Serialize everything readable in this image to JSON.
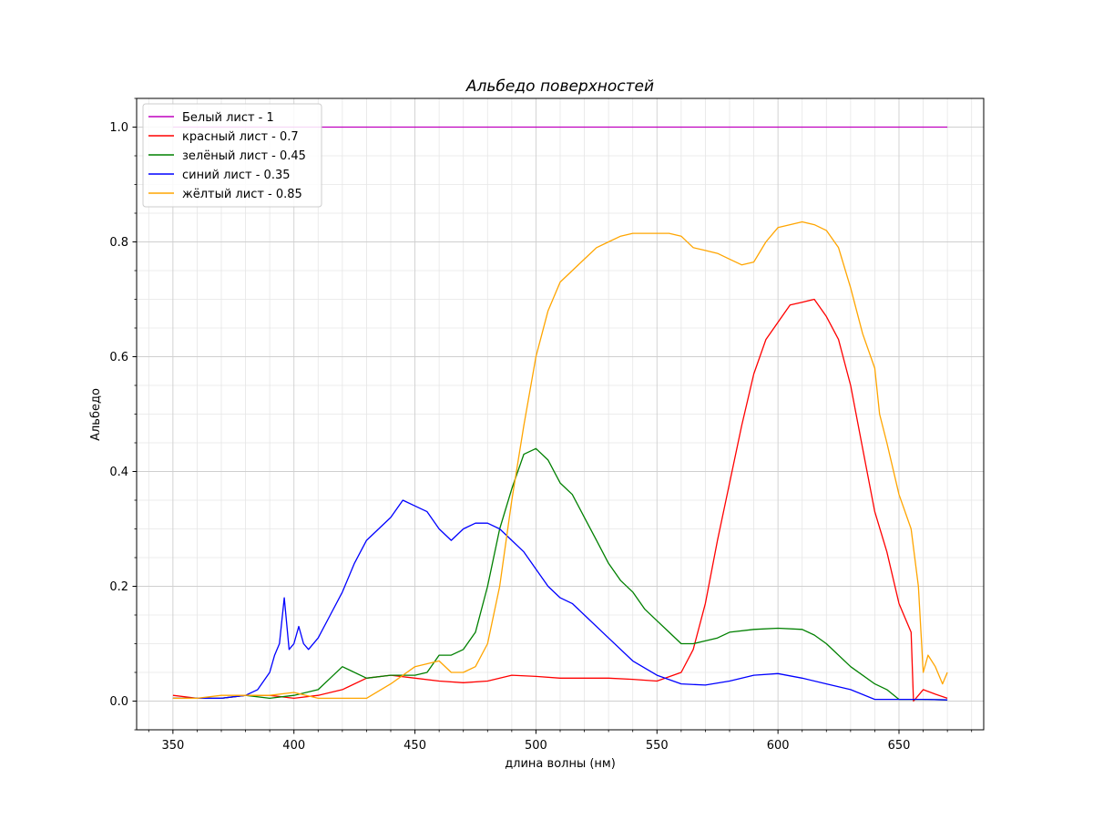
{
  "chart_data": {
    "type": "line",
    "title": "Альбедо поверхностей",
    "xlabel": "длина волны (нм)",
    "ylabel": "Альбедо",
    "xlim": [
      335,
      685
    ],
    "ylim": [
      -0.05,
      1.05
    ],
    "x_ticks": [
      350,
      400,
      450,
      500,
      550,
      600,
      650
    ],
    "y_ticks": [
      0.0,
      0.2,
      0.4,
      0.6,
      0.8,
      1.0
    ],
    "x_tick_labels": [
      "350",
      "400",
      "450",
      "500",
      "550",
      "600",
      "650"
    ],
    "y_tick_labels": [
      "0.0",
      "0.2",
      "0.4",
      "0.6",
      "0.8",
      "1.0"
    ],
    "grid": "major and minor",
    "legend_position": "upper-left",
    "series": [
      {
        "name": "Белый лист - 1",
        "color": "#bf00bf",
        "x": [
          350,
          670
        ],
        "y": [
          1.0,
          1.0
        ]
      },
      {
        "name": "красный лист - 0.7",
        "color": "#ff0000",
        "x": [
          350,
          360,
          370,
          380,
          390,
          400,
          410,
          420,
          430,
          440,
          450,
          460,
          470,
          480,
          490,
          500,
          510,
          520,
          530,
          540,
          550,
          560,
          565,
          570,
          575,
          580,
          585,
          590,
          595,
          600,
          605,
          610,
          615,
          620,
          625,
          630,
          635,
          640,
          645,
          650,
          652,
          655,
          656,
          657,
          660,
          665,
          670
        ],
        "y": [
          0.01,
          0.005,
          0.005,
          0.01,
          0.01,
          0.005,
          0.01,
          0.02,
          0.04,
          0.045,
          0.04,
          0.035,
          0.032,
          0.035,
          0.045,
          0.043,
          0.04,
          0.04,
          0.04,
          0.038,
          0.035,
          0.05,
          0.09,
          0.17,
          0.28,
          0.38,
          0.48,
          0.57,
          0.63,
          0.66,
          0.69,
          0.695,
          0.7,
          0.67,
          0.63,
          0.55,
          0.44,
          0.33,
          0.26,
          0.17,
          0.15,
          0.12,
          0.0,
          0.005,
          0.02,
          0.012,
          0.005
        ]
      },
      {
        "name": "зелёный лист - 0.45",
        "color": "#008000",
        "x": [
          350,
          360,
          370,
          380,
          390,
          400,
          410,
          415,
          420,
          430,
          440,
          450,
          455,
          460,
          465,
          470,
          475,
          480,
          485,
          490,
          495,
          500,
          505,
          510,
          515,
          520,
          525,
          530,
          535,
          540,
          545,
          550,
          555,
          560,
          565,
          570,
          575,
          580,
          590,
          600,
          610,
          615,
          620,
          630,
          640,
          645,
          650,
          660,
          670
        ],
        "y": [
          0.005,
          0.005,
          0.005,
          0.01,
          0.005,
          0.01,
          0.02,
          0.04,
          0.06,
          0.04,
          0.045,
          0.045,
          0.05,
          0.08,
          0.08,
          0.09,
          0.12,
          0.2,
          0.3,
          0.37,
          0.43,
          0.44,
          0.42,
          0.38,
          0.36,
          0.32,
          0.28,
          0.24,
          0.21,
          0.19,
          0.16,
          0.14,
          0.12,
          0.1,
          0.1,
          0.105,
          0.11,
          0.12,
          0.125,
          0.127,
          0.125,
          0.115,
          0.1,
          0.06,
          0.03,
          0.02,
          0.003,
          0.003,
          0.002
        ]
      },
      {
        "name": "синий лист - 0.35",
        "color": "#0000ff",
        "x": [
          350,
          360,
          370,
          380,
          385,
          390,
          392,
          394,
          396,
          398,
          400,
          402,
          404,
          406,
          410,
          415,
          420,
          425,
          430,
          435,
          440,
          445,
          450,
          455,
          460,
          465,
          470,
          475,
          480,
          485,
          490,
          495,
          500,
          505,
          510,
          515,
          520,
          530,
          540,
          550,
          560,
          570,
          580,
          590,
          600,
          610,
          620,
          630,
          640,
          650,
          660,
          670
        ],
        "y": [
          0.005,
          0.005,
          0.005,
          0.01,
          0.02,
          0.05,
          0.08,
          0.1,
          0.18,
          0.09,
          0.1,
          0.13,
          0.1,
          0.09,
          0.11,
          0.15,
          0.19,
          0.24,
          0.28,
          0.3,
          0.32,
          0.35,
          0.34,
          0.33,
          0.3,
          0.28,
          0.3,
          0.31,
          0.31,
          0.3,
          0.28,
          0.26,
          0.23,
          0.2,
          0.18,
          0.17,
          0.15,
          0.11,
          0.07,
          0.045,
          0.03,
          0.028,
          0.035,
          0.045,
          0.048,
          0.04,
          0.03,
          0.02,
          0.003,
          0.003,
          0.003,
          0.002
        ]
      },
      {
        "name": "жёлтый лист - 0.85",
        "color": "#ffa500",
        "x": [
          350,
          360,
          370,
          380,
          390,
          400,
          410,
          420,
          430,
          440,
          450,
          460,
          465,
          470,
          475,
          480,
          485,
          490,
          495,
          500,
          505,
          510,
          515,
          520,
          525,
          530,
          535,
          540,
          545,
          550,
          555,
          560,
          565,
          570,
          575,
          580,
          585,
          590,
          595,
          600,
          605,
          610,
          615,
          620,
          625,
          630,
          635,
          640,
          642,
          645,
          650,
          655,
          658,
          660,
          662,
          665,
          668,
          670
        ],
        "y": [
          0.005,
          0.005,
          0.01,
          0.01,
          0.01,
          0.015,
          0.005,
          0.005,
          0.005,
          0.03,
          0.06,
          0.07,
          0.05,
          0.05,
          0.06,
          0.1,
          0.2,
          0.35,
          0.48,
          0.6,
          0.68,
          0.73,
          0.75,
          0.77,
          0.79,
          0.8,
          0.81,
          0.815,
          0.815,
          0.815,
          0.815,
          0.81,
          0.79,
          0.785,
          0.78,
          0.77,
          0.76,
          0.765,
          0.8,
          0.825,
          0.83,
          0.835,
          0.83,
          0.82,
          0.79,
          0.72,
          0.64,
          0.58,
          0.5,
          0.45,
          0.36,
          0.3,
          0.2,
          0.05,
          0.08,
          0.06,
          0.03,
          0.05
        ]
      }
    ]
  }
}
